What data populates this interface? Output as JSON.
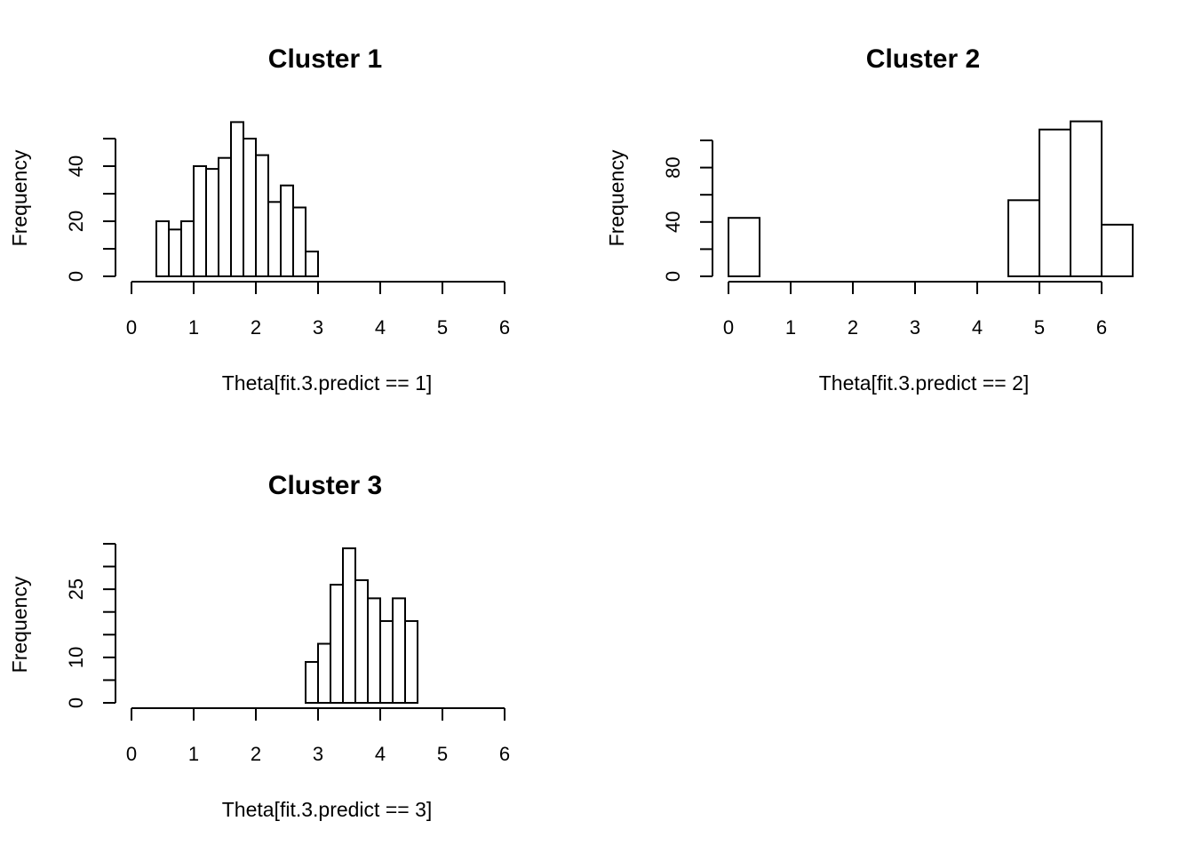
{
  "chart_data": [
    {
      "type": "bar",
      "title": "Cluster 1",
      "xlabel": "Theta[fit.3.predict == 1]",
      "ylabel": "Frequency",
      "xlim": [
        0,
        6
      ],
      "ylim": [
        0,
        50
      ],
      "x_ticks": [
        "0",
        "1",
        "2",
        "3",
        "4",
        "5",
        "6"
      ],
      "y_ticks": [
        "0",
        "20",
        "40"
      ],
      "bin_edges": [
        0.4,
        0.6,
        0.8,
        1.0,
        1.2,
        1.4,
        1.6,
        1.8,
        2.0,
        2.2,
        2.4,
        2.6,
        2.8,
        3.0
      ],
      "values": [
        20,
        17,
        20,
        40,
        39,
        43,
        56,
        50,
        44,
        27,
        33,
        25,
        9
      ]
    },
    {
      "type": "bar",
      "title": "Cluster 2",
      "xlabel": "Theta[fit.3.predict == 2]",
      "ylabel": "Frequency",
      "xlim": [
        0,
        6
      ],
      "ylim": [
        0,
        100
      ],
      "x_ticks": [
        "0",
        "1",
        "2",
        "3",
        "4",
        "5",
        "6"
      ],
      "y_ticks": [
        "0",
        "40",
        "80"
      ],
      "bin_edges": [
        0,
        0.5,
        1.0,
        1.5,
        2.0,
        2.5,
        3.0,
        3.5,
        4.0,
        4.5,
        5.0,
        5.5,
        6.0,
        6.5
      ],
      "values": [
        43,
        0,
        0,
        0,
        0,
        0,
        0,
        0,
        0,
        56,
        108,
        114,
        38
      ]
    },
    {
      "type": "bar",
      "title": "Cluster 3",
      "xlabel": "Theta[fit.3.predict == 3]",
      "ylabel": "Frequency",
      "xlim": [
        0,
        6
      ],
      "ylim": [
        0,
        35
      ],
      "x_ticks": [
        "0",
        "1",
        "2",
        "3",
        "4",
        "5",
        "6"
      ],
      "y_ticks": [
        "0",
        "10",
        "25"
      ],
      "bin_edges": [
        2.8,
        3.0,
        3.2,
        3.4,
        3.6,
        3.8,
        4.0,
        4.2,
        4.4,
        4.6
      ],
      "values": [
        9,
        13,
        26,
        34,
        27,
        23,
        18,
        23,
        18
      ]
    }
  ]
}
